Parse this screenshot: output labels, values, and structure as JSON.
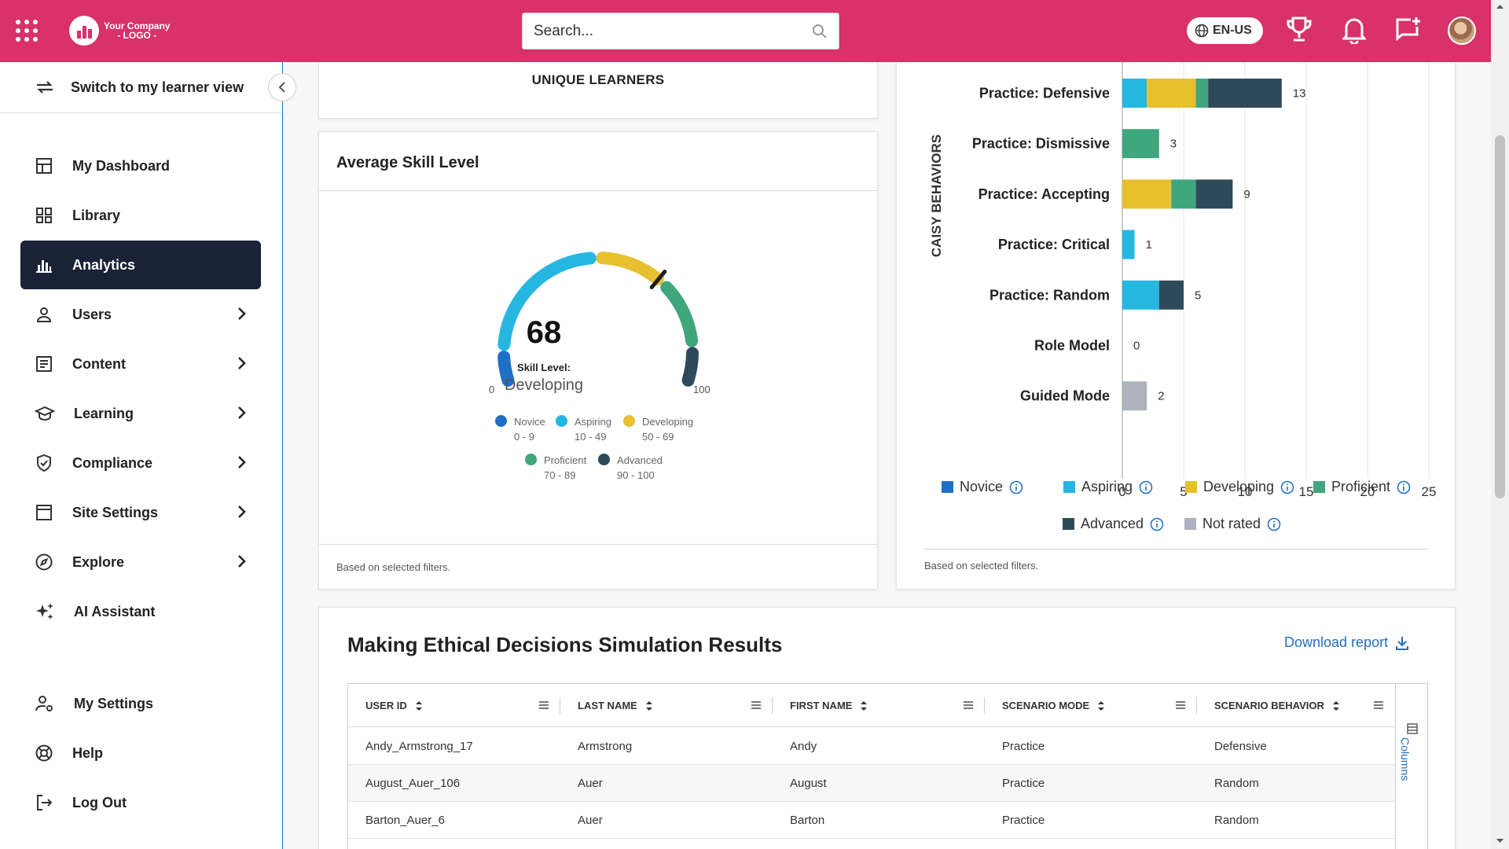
{
  "header": {
    "logo_line1": "Your Company",
    "logo_line2": "- LOGO -",
    "search_placeholder": "Search...",
    "language": "EN-US",
    "icons": [
      "apps-grid-icon",
      "search-icon",
      "globe-icon",
      "trophy-icon",
      "bell-icon",
      "chat-add-icon"
    ],
    "brand_color": "#d9316a"
  },
  "sidebar": {
    "switch_label": "Switch to my learner view",
    "items": [
      {
        "label": "My Dashboard",
        "icon": "dashboard-icon"
      },
      {
        "label": "Library",
        "icon": "library-icon"
      },
      {
        "label": "Analytics",
        "icon": "analytics-icon",
        "active": true
      },
      {
        "label": "Users",
        "icon": "user-icon"
      },
      {
        "label": "Content",
        "icon": "content-icon"
      },
      {
        "label": "Learning",
        "icon": "learning-icon"
      },
      {
        "label": "Compliance",
        "icon": "shield-icon"
      },
      {
        "label": "Site Settings",
        "icon": "window-icon"
      },
      {
        "label": "Explore",
        "icon": "compass-icon"
      },
      {
        "label": "AI Assistant",
        "icon": "sparkle-icon"
      },
      {
        "label": "My Settings",
        "icon": "user-settings-icon"
      },
      {
        "label": "Help",
        "icon": "lifebuoy-icon"
      },
      {
        "label": "Log Out",
        "icon": "logout-icon"
      }
    ],
    "active_color": "#1a2238"
  },
  "unique_learners": {
    "title": "UNIQUE LEARNERS"
  },
  "avg_skill": {
    "title": "Average Skill Level",
    "value": "68",
    "label": "Skill Level:",
    "level": "Developing",
    "min": "0",
    "max": "100",
    "footnote": "Based on selected filters.",
    "legend": [
      {
        "name": "Novice",
        "range": "0 - 9",
        "color": "#1f6fc6"
      },
      {
        "name": "Aspiring",
        "range": "10 - 49",
        "color": "#26b7e0"
      },
      {
        "name": "Developing",
        "range": "50 - 69",
        "color": "#e6c02f"
      },
      {
        "name": "Proficient",
        "range": "70 - 89",
        "color": "#3fa67d"
      },
      {
        "name": "Advanced",
        "range": "90 - 100",
        "color": "#2e4a5a"
      }
    ]
  },
  "chart_data": {
    "type": "bar",
    "orientation": "horizontal",
    "stacked": true,
    "ylabel": "CAISY BEHAVIORS",
    "categories": [
      "Practice: Defensive",
      "Practice: Dismissive",
      "Practice: Accepting",
      "Practice: Critical",
      "Practice: Random",
      "Role Model",
      "Guided Mode"
    ],
    "series": [
      {
        "name": "Novice",
        "color": "#1f6fc6",
        "values": [
          0,
          0,
          0,
          0,
          0,
          0,
          0
        ]
      },
      {
        "name": "Aspiring",
        "color": "#26b7e0",
        "values": [
          2,
          0,
          0,
          1,
          3,
          0,
          0
        ]
      },
      {
        "name": "Developing",
        "color": "#e6c02f",
        "values": [
          4,
          0,
          4,
          0,
          0,
          0,
          0
        ]
      },
      {
        "name": "Proficient",
        "color": "#3fa67d",
        "values": [
          1,
          3,
          2,
          0,
          0,
          0,
          0
        ]
      },
      {
        "name": "Advanced",
        "color": "#2e4a5a",
        "values": [
          6,
          0,
          3,
          0,
          2,
          0,
          0
        ]
      },
      {
        "name": "Not rated",
        "color": "#adb3bd",
        "values": [
          0,
          0,
          0,
          0,
          0,
          0,
          2
        ]
      }
    ],
    "totals": [
      13,
      3,
      9,
      1,
      5,
      0,
      2
    ],
    "x_ticks": [
      0,
      5,
      10,
      15,
      20,
      25
    ],
    "xlim": [
      0,
      25
    ],
    "grid": true,
    "legend_position": "bottom",
    "footnote": "Based on selected filters."
  },
  "results": {
    "title": "Making Ethical Decisions Simulation Results",
    "download_label": "Download report",
    "columns_label": "Columns",
    "headers": [
      "USER ID",
      "LAST NAME",
      "FIRST NAME",
      "SCENARIO MODE",
      "SCENARIO BEHAVIOR"
    ],
    "rows": [
      [
        "Andy_Armstrong_17",
        "Armstrong",
        "Andy",
        "Practice",
        "Defensive"
      ],
      [
        "August_Auer_106",
        "Auer",
        "August",
        "Practice",
        "Random"
      ],
      [
        "Barton_Auer_6",
        "Auer",
        "Barton",
        "Practice",
        "Random"
      ]
    ]
  }
}
